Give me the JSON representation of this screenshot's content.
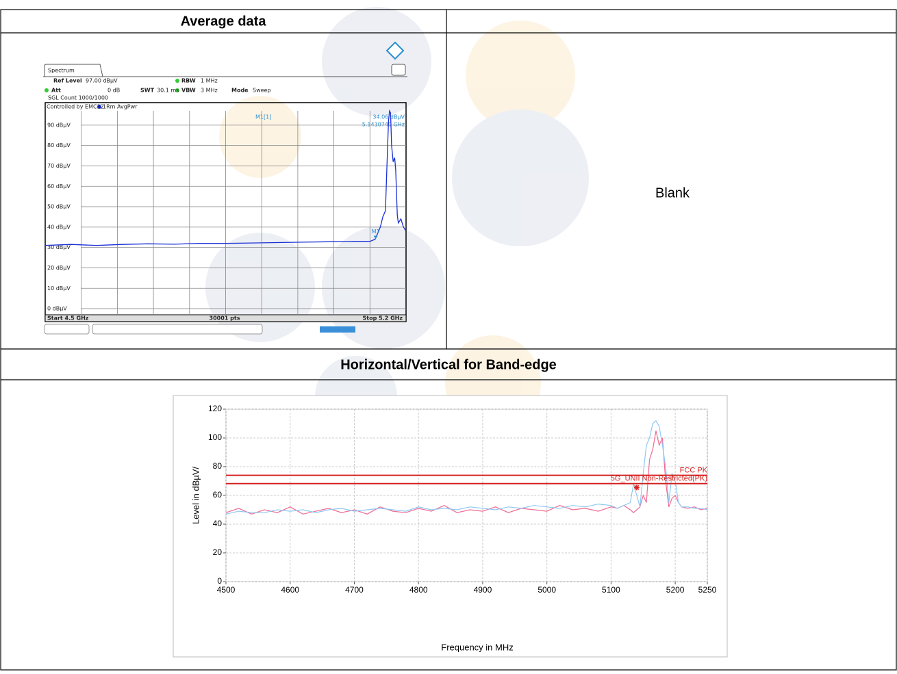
{
  "table": {
    "headers": [
      "Average data"
    ],
    "blank_cell": "Blank",
    "section_title": "Horizontal/Vertical for Band-edge"
  },
  "chart_data": [
    {
      "type": "line",
      "tab": "Spectrum",
      "ref_level": [
        "Ref Level",
        "97.00 dBµV"
      ],
      "att": [
        "Att",
        "0 dB"
      ],
      "swt": [
        "SWT",
        "30.1 ms"
      ],
      "rbw": [
        "RBW",
        "1 MHz"
      ],
      "vbw": [
        "VBW",
        "3 MHz"
      ],
      "mode": [
        "Mode",
        "Sweep"
      ],
      "count": "SGL Count 1000/1000",
      "controlled": "Controlled by EMC32",
      "trace_label": "1Rm AvgPwr",
      "marker": {
        "name": "M1",
        "readout": "M1[1]",
        "x": 5.141074,
        "value": 34.06,
        "value_label": "34.06 dBµV",
        "x_label": "5.1410740 GHz"
      },
      "start": "Start 4.5 GHz",
      "points": "30001 pts",
      "stop": "Stop 5.2 GHz",
      "xlim": [
        4.5,
        5.2
      ],
      "ylim": [
        -3,
        97
      ],
      "yticks": [
        {
          "value": 0,
          "label": "0 dBµV"
        },
        {
          "value": 10,
          "label": "10 dBµV"
        },
        {
          "value": 20,
          "label": "20 dBµV"
        },
        {
          "value": 30,
          "label": "30 dBµV"
        },
        {
          "value": 40,
          "label": "40 dBµV"
        },
        {
          "value": 50,
          "label": "50 dBµV"
        },
        {
          "value": 60,
          "label": "60 dBµV"
        },
        {
          "value": 70,
          "label": "70 dBµV"
        },
        {
          "value": 80,
          "label": "80 dBµV"
        },
        {
          "value": 90,
          "label": "90 dBµV"
        }
      ],
      "grid": true,
      "color": "#1a2fd6",
      "x": [
        4.5,
        4.55,
        4.6,
        4.65,
        4.7,
        4.75,
        4.8,
        4.85,
        4.9,
        4.95,
        5.0,
        5.05,
        5.1,
        5.12,
        5.13,
        5.14,
        5.15,
        5.155,
        5.16,
        5.163,
        5.166,
        5.168,
        5.17,
        5.172,
        5.175,
        5.178,
        5.18,
        5.183,
        5.185,
        5.19,
        5.195,
        5.2
      ],
      "values": [
        31,
        31.5,
        31,
        31.5,
        31.8,
        31.6,
        32,
        32,
        32.2,
        32.4,
        32.6,
        32.8,
        33,
        33,
        33,
        34,
        40,
        45,
        48,
        70,
        92,
        97,
        96,
        80,
        72,
        74,
        68,
        46,
        42,
        44,
        40,
        38
      ]
    },
    {
      "type": "line",
      "xlabel": "Frequency in MHz",
      "ylabel": "Level in dBµV/",
      "xlim": [
        4500,
        5250
      ],
      "ylim": [
        0,
        120
      ],
      "xticks": [
        4500,
        4600,
        4700,
        4800,
        4900,
        5000,
        5100,
        5200,
        5250
      ],
      "yticks": [
        0,
        20,
        40,
        60,
        80,
        100,
        120
      ],
      "grid": true,
      "limits": [
        {
          "name": "FCC PK",
          "value": 74,
          "color": "#d62020"
        },
        {
          "name": "5G_UNII Non-Restricted(PK)",
          "value": 68.2,
          "color": "#d62020"
        }
      ],
      "x": [
        4500,
        4520,
        4540,
        4560,
        4580,
        4600,
        4620,
        4640,
        4660,
        4680,
        4700,
        4720,
        4740,
        4760,
        4780,
        4800,
        4820,
        4840,
        4860,
        4880,
        4900,
        4920,
        4940,
        4960,
        4980,
        5000,
        5020,
        5040,
        5060,
        5080,
        5100,
        5110,
        5120,
        5130,
        5135,
        5140,
        5145,
        5150,
        5155,
        5160,
        5165,
        5170,
        5175,
        5180,
        5185,
        5190,
        5195,
        5200,
        5205,
        5210,
        5220,
        5230,
        5240,
        5250
      ],
      "series": [
        {
          "color": "#f06a94",
          "values": [
            48,
            51,
            47,
            50,
            48,
            52,
            47,
            49,
            51,
            48,
            50,
            47,
            52,
            49,
            48,
            51,
            49,
            53,
            48,
            50,
            49,
            52,
            48,
            51,
            50,
            49,
            53,
            50,
            51,
            49,
            52,
            51,
            53,
            50,
            48,
            50,
            52,
            60,
            55,
            85,
            92,
            105,
            95,
            100,
            70,
            52,
            58,
            60,
            55,
            52,
            51,
            52,
            50,
            51
          ]
        },
        {
          "color": "#8ec8f2",
          "values": [
            47,
            49,
            48,
            48,
            50,
            49,
            50,
            48,
            50,
            51,
            49,
            50,
            51,
            50,
            49,
            52,
            50,
            51,
            50,
            52,
            51,
            50,
            52,
            51,
            53,
            52,
            51,
            53,
            52,
            54,
            53,
            51,
            53,
            55,
            68,
            60,
            52,
            75,
            95,
            100,
            110,
            112,
            108,
            95,
            80,
            55,
            75,
            70,
            55,
            52,
            52,
            51,
            51,
            50
          ]
        }
      ],
      "marker": {
        "x": 5140,
        "value": 65.5,
        "color": "#e02020"
      }
    }
  ]
}
